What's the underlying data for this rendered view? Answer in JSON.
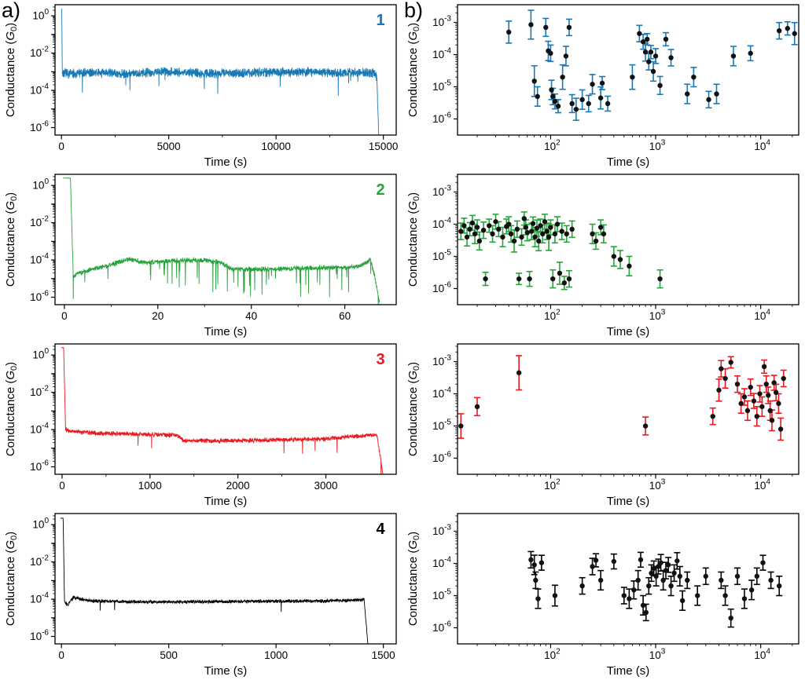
{
  "panels": {
    "a": {
      "label": "a)"
    },
    "b": {
      "label": "b)"
    }
  },
  "axis_labels": {
    "x": "Time (s)",
    "y": "Conductance (G_0)"
  },
  "colors": {
    "series1": "#1779b4",
    "series2": "#27a33c",
    "series3": "#e8191f",
    "series4": "#000000",
    "marker": "#111111"
  },
  "chart_data": [
    {
      "id": "a1",
      "type": "line",
      "series_label": "1",
      "color": "#1779b4",
      "xlabel": "Time (s)",
      "ylabel": "Conductance (G_0)",
      "x_scale": "linear",
      "xlim": [
        -300,
        15600
      ],
      "xticks": [
        0,
        5000,
        10000,
        15000
      ],
      "ylim_log": [
        -6.4,
        0.6
      ],
      "yticks_exp": [
        0,
        -2,
        -4,
        -6
      ],
      "trace": {
        "seed": 7,
        "n": 2200,
        "noise": 0.18,
        "spike_prob": 0.004,
        "spike_depth": 0.9,
        "anchors": [
          [
            0,
            0.35
          ],
          [
            15,
            0.35
          ],
          [
            40,
            -3.05
          ],
          [
            300,
            -3.1
          ],
          [
            1500,
            -3.05
          ],
          [
            3000,
            -3.1
          ],
          [
            5000,
            -3.0
          ],
          [
            7000,
            -3.1
          ],
          [
            9000,
            -3.05
          ],
          [
            11000,
            -3.0
          ],
          [
            13000,
            -3.05
          ],
          [
            14550,
            -3.05
          ],
          [
            14700,
            -3.3
          ],
          [
            14780,
            -6.4
          ]
        ]
      }
    },
    {
      "id": "a2",
      "type": "line",
      "series_label": "2",
      "color": "#27a33c",
      "xlabel": "Time (s)",
      "ylabel": "Conductance (G_0)",
      "x_scale": "linear",
      "xlim": [
        -2,
        71
      ],
      "xticks": [
        0,
        20,
        40,
        60
      ],
      "ylim_log": [
        -6.4,
        0.6
      ],
      "yticks_exp": [
        0,
        -2,
        -4,
        -6
      ],
      "trace": {
        "seed": 21,
        "n": 1600,
        "noise": 0.1,
        "spike_prob": 0.025,
        "spike_depth": 1.2,
        "anchors": [
          [
            -0.3,
            0.4
          ],
          [
            1.3,
            0.4
          ],
          [
            1.9,
            -4.9
          ],
          [
            3,
            -4.7
          ],
          [
            6,
            -4.5
          ],
          [
            10,
            -4.25
          ],
          [
            14,
            -3.95
          ],
          [
            17,
            -4.15
          ],
          [
            22,
            -4.05
          ],
          [
            28,
            -4.0
          ],
          [
            33,
            -4.1
          ],
          [
            36,
            -4.5
          ],
          [
            43,
            -4.5
          ],
          [
            50,
            -4.45
          ],
          [
            58,
            -4.4
          ],
          [
            63,
            -4.35
          ],
          [
            65.5,
            -4.0
          ],
          [
            66.5,
            -5.0
          ],
          [
            67.5,
            -6.4
          ]
        ]
      }
    },
    {
      "id": "a3",
      "type": "line",
      "series_label": "3",
      "color": "#e8191f",
      "xlabel": "Time (s)",
      "ylabel": "Conductance (G_0)",
      "x_scale": "linear",
      "xlim": [
        -80,
        3800
      ],
      "xticks": [
        0,
        1000,
        2000,
        3000
      ],
      "ylim_log": [
        -6.4,
        0.6
      ],
      "yticks_exp": [
        0,
        -2,
        -4,
        -6
      ],
      "trace": {
        "seed": 33,
        "n": 1800,
        "noise": 0.09,
        "spike_prob": 0.004,
        "spike_depth": 0.5,
        "anchors": [
          [
            -10,
            0.4
          ],
          [
            18,
            0.4
          ],
          [
            40,
            -4.0
          ],
          [
            120,
            -4.1
          ],
          [
            400,
            -4.2
          ],
          [
            900,
            -4.25
          ],
          [
            1300,
            -4.3
          ],
          [
            1390,
            -4.6
          ],
          [
            1900,
            -4.6
          ],
          [
            2500,
            -4.55
          ],
          [
            3000,
            -4.5
          ],
          [
            3350,
            -4.35
          ],
          [
            3580,
            -4.3
          ],
          [
            3650,
            -6.4
          ]
        ]
      }
    },
    {
      "id": "a4",
      "type": "line",
      "series_label": "4",
      "color": "#000000",
      "xlabel": "Time (s)",
      "ylabel": "Conductance (G_0)",
      "x_scale": "linear",
      "xlim": [
        -30,
        1560
      ],
      "xticks": [
        0,
        500,
        1000,
        1500
      ],
      "ylim_log": [
        -6.4,
        0.6
      ],
      "yticks_exp": [
        0,
        -2,
        -4,
        -6
      ],
      "trace": {
        "seed": 44,
        "n": 1600,
        "noise": 0.07,
        "spike_prob": 0.003,
        "spike_depth": 0.5,
        "anchors": [
          [
            -5,
            0.35
          ],
          [
            8,
            0.35
          ],
          [
            14,
            -4.15
          ],
          [
            30,
            -4.3
          ],
          [
            55,
            -3.9
          ],
          [
            90,
            -4.0
          ],
          [
            150,
            -4.1
          ],
          [
            400,
            -4.15
          ],
          [
            800,
            -4.12
          ],
          [
            1200,
            -4.1
          ],
          [
            1380,
            -4.05
          ],
          [
            1410,
            -4.0
          ],
          [
            1428,
            -6.4
          ]
        ]
      }
    },
    {
      "id": "b1",
      "type": "scatter",
      "color": "#1779b4",
      "marker_color": "#111111",
      "xlabel": "Time (s)",
      "ylabel": "Conductance (G_0)",
      "x_scale": "log",
      "xlim": [
        13,
        23000
      ],
      "xticks_exp": [
        2,
        3,
        4
      ],
      "ylim_log": [
        -6.5,
        -2.45
      ],
      "yticks_exp": [
        -3,
        -4,
        -5,
        -6
      ],
      "points": [
        [
          40,
          0.0005,
          2.2
        ],
        [
          65,
          0.00085,
          2.8
        ],
        [
          70,
          1.5e-05,
          3
        ],
        [
          75,
          5e-06,
          2
        ],
        [
          90,
          0.0007,
          1.9
        ],
        [
          95,
          0.00013,
          2
        ],
        [
          100,
          0.00011,
          1.8
        ],
        [
          102,
          8e-06,
          2
        ],
        [
          105,
          5e-06,
          1.8
        ],
        [
          110,
          3.5e-06,
          1.7
        ],
        [
          118,
          2.5e-06,
          1.6
        ],
        [
          130,
          2e-05,
          2.4
        ],
        [
          140,
          9e-05,
          2
        ],
        [
          150,
          0.0007,
          1.8
        ],
        [
          160,
          3e-06,
          1.9
        ],
        [
          175,
          2e-06,
          2.2
        ],
        [
          200,
          4e-06,
          2
        ],
        [
          230,
          3e-06,
          1.8
        ],
        [
          250,
          1.2e-05,
          2
        ],
        [
          300,
          4.5e-06,
          2.2
        ],
        [
          310,
          1.3e-05,
          1.6
        ],
        [
          350,
          3e-06,
          1.7
        ],
        [
          600,
          2e-05,
          2.4
        ],
        [
          700,
          0.00045,
          1.8
        ],
        [
          760,
          0.00025,
          1.7
        ],
        [
          800,
          0.00012,
          1.9
        ],
        [
          830,
          0.0003,
          1.5
        ],
        [
          860,
          6e-05,
          1.8
        ],
        [
          900,
          0.00012,
          1.6
        ],
        [
          950,
          3e-05,
          2
        ],
        [
          1000,
          9e-05,
          1.7
        ],
        [
          1100,
          1.1e-05,
          1.9
        ],
        [
          1250,
          0.0003,
          1.6
        ],
        [
          1400,
          8e-05,
          1.8
        ],
        [
          2000,
          6e-06,
          2
        ],
        [
          2300,
          2e-05,
          2
        ],
        [
          3200,
          4e-06,
          1.8
        ],
        [
          3800,
          6e-06,
          2
        ],
        [
          5500,
          9e-05,
          2
        ],
        [
          8000,
          0.00011,
          1.7
        ],
        [
          15000,
          0.00055,
          1.8
        ],
        [
          18000,
          0.00065,
          1.6
        ],
        [
          21000,
          0.00045,
          2.2
        ]
      ]
    },
    {
      "id": "b2",
      "type": "scatter",
      "color": "#27a33c",
      "marker_color": "#111111",
      "xlabel": "Time (s)",
      "ylabel": "Conductance (G_0)",
      "x_scale": "log",
      "xlim": [
        13,
        23000
      ],
      "xticks_exp": [
        2,
        3,
        4
      ],
      "ylim_log": [
        -6.5,
        -2.45
      ],
      "yticks_exp": [
        -3,
        -4,
        -5,
        -6
      ],
      "points": [
        [
          14,
          6e-05,
          1.8
        ],
        [
          15,
          9e-05,
          1.7
        ],
        [
          16,
          4e-05,
          1.9
        ],
        [
          17,
          7e-05,
          1.6
        ],
        [
          18,
          0.00011,
          1.7
        ],
        [
          19,
          5e-05,
          2
        ],
        [
          20,
          8e-05,
          1.7
        ],
        [
          21,
          3e-05,
          1.9
        ],
        [
          23,
          6.5e-05,
          1.8
        ],
        [
          24,
          2e-06,
          1.6
        ],
        [
          26,
          9e-05,
          1.6
        ],
        [
          28,
          5e-05,
          1.8
        ],
        [
          30,
          0.00012,
          1.7
        ],
        [
          32,
          7e-05,
          1.7
        ],
        [
          35,
          4e-05,
          2
        ],
        [
          38,
          8.5e-05,
          1.7
        ],
        [
          40,
          0.0001,
          1.7
        ],
        [
          42,
          5e-05,
          1.8
        ],
        [
          45,
          3e-05,
          2.2
        ],
        [
          48,
          7e-05,
          1.8
        ],
        [
          50,
          2e-06,
          1.5
        ],
        [
          53,
          4e-05,
          1.8
        ],
        [
          56,
          0.00015,
          1.6
        ],
        [
          58,
          8e-05,
          1.7
        ],
        [
          60,
          5.5e-05,
          1.8
        ],
        [
          63,
          2e-06,
          1.7
        ],
        [
          66,
          6e-05,
          1.8
        ],
        [
          68,
          0.000105,
          1.6
        ],
        [
          71,
          4e-05,
          2
        ],
        [
          74,
          7.5e-05,
          1.8
        ],
        [
          77,
          3e-05,
          2
        ],
        [
          80,
          9e-05,
          1.6
        ],
        [
          84,
          5e-05,
          1.9
        ],
        [
          88,
          0.00012,
          1.7
        ],
        [
          92,
          6e-05,
          1.8
        ],
        [
          96,
          4e-05,
          2.6
        ],
        [
          100,
          8e-05,
          1.7
        ],
        [
          105,
          2e-06,
          1.9
        ],
        [
          110,
          5e-05,
          1.9
        ],
        [
          116,
          0.0001,
          1.7
        ],
        [
          122,
          3e-06,
          2.2
        ],
        [
          128,
          6e-05,
          1.8
        ],
        [
          135,
          1.5e-06,
          1.6
        ],
        [
          142,
          5e-05,
          1.8
        ],
        [
          150,
          2e-06,
          1.8
        ],
        [
          160,
          7e-05,
          1.8
        ],
        [
          250,
          5e-05,
          2
        ],
        [
          270,
          3e-05,
          1.8
        ],
        [
          300,
          8e-05,
          1.7
        ],
        [
          320,
          5e-05,
          1.9
        ],
        [
          400,
          1e-05,
          2
        ],
        [
          460,
          8e-06,
          1.9
        ],
        [
          560,
          5e-06,
          2
        ],
        [
          1100,
          2e-06,
          1.9
        ]
      ]
    },
    {
      "id": "b3",
      "type": "scatter",
      "color": "#e8191f",
      "marker_color": "#111111",
      "xlabel": "Time (s)",
      "ylabel": "Conductance (G_0)",
      "x_scale": "log",
      "xlim": [
        13,
        23000
      ],
      "xticks_exp": [
        2,
        3,
        4
      ],
      "ylim_log": [
        -6.5,
        -2.45
      ],
      "yticks_exp": [
        -3,
        -4,
        -5,
        -6
      ],
      "points": [
        [
          14,
          1e-05,
          2.4
        ],
        [
          20,
          4e-05,
          1.9
        ],
        [
          50,
          0.00045,
          3.4
        ],
        [
          800,
          1e-05,
          1.9
        ],
        [
          3500,
          2e-05,
          1.8
        ],
        [
          4000,
          0.00013,
          2.2
        ],
        [
          4200,
          0.0006,
          1.8
        ],
        [
          4600,
          0.0003,
          2
        ],
        [
          5200,
          0.00095,
          1.5
        ],
        [
          6000,
          0.0002,
          1.8
        ],
        [
          6500,
          5e-05,
          2
        ],
        [
          7000,
          8e-05,
          1.8
        ],
        [
          7500,
          3e-05,
          2
        ],
        [
          8000,
          0.00016,
          1.8
        ],
        [
          8600,
          6e-05,
          1.7
        ],
        [
          9200,
          2e-05,
          2
        ],
        [
          9800,
          0.0001,
          1.8
        ],
        [
          10300,
          4e-05,
          2
        ],
        [
          10800,
          0.0007,
          1.6
        ],
        [
          11300,
          0.0002,
          1.8
        ],
        [
          11800,
          9e-05,
          1.8
        ],
        [
          12300,
          3e-05,
          2
        ],
        [
          12800,
          1.5e-05,
          2.1
        ],
        [
          13400,
          0.00022,
          1.7
        ],
        [
          14000,
          0.00011,
          1.8
        ],
        [
          14800,
          5e-05,
          2
        ],
        [
          15500,
          8e-06,
          2.2
        ],
        [
          16500,
          0.0003,
          1.8
        ]
      ]
    },
    {
      "id": "b4",
      "type": "scatter",
      "color": "#000000",
      "marker_color": "#111111",
      "xlabel": "Time (s)",
      "ylabel": "Conductance (G_0)",
      "x_scale": "log",
      "xlim": [
        13,
        23000
      ],
      "xticks_exp": [
        2,
        3,
        4
      ],
      "ylim_log": [
        -6.5,
        -2.45
      ],
      "yticks_exp": [
        -3,
        -4,
        -5,
        -6
      ],
      "points": [
        [
          65,
          0.00013,
          1.8
        ],
        [
          70,
          9e-05,
          2
        ],
        [
          72,
          3e-05,
          1.8
        ],
        [
          76,
          8e-06,
          2
        ],
        [
          82,
          0.000105,
          1.7
        ],
        [
          110,
          1e-05,
          2.1
        ],
        [
          200,
          2e-05,
          1.8
        ],
        [
          250,
          8e-05,
          1.8
        ],
        [
          270,
          0.000125,
          1.6
        ],
        [
          300,
          3e-05,
          2
        ],
        [
          400,
          0.000115,
          1.7
        ],
        [
          500,
          1e-05,
          1.8
        ],
        [
          560,
          8e-06,
          2
        ],
        [
          620,
          1.5e-05,
          1.9
        ],
        [
          680,
          3e-05,
          2
        ],
        [
          720,
          0.00013,
          1.7
        ],
        [
          760,
          5e-06,
          2
        ],
        [
          810,
          3e-06,
          1.8
        ],
        [
          860,
          2e-05,
          1.8
        ],
        [
          910,
          5e-05,
          1.8
        ],
        [
          960,
          7e-05,
          1.7
        ],
        [
          1010,
          4e-05,
          2
        ],
        [
          1060,
          8e-05,
          1.7
        ],
        [
          1120,
          0.000105,
          1.8
        ],
        [
          1180,
          3e-05,
          2
        ],
        [
          1250,
          6e-05,
          1.8
        ],
        [
          1320,
          9e-05,
          1.7
        ],
        [
          1400,
          2e-05,
          2
        ],
        [
          1500,
          5e-05,
          1.8
        ],
        [
          1600,
          0.00012,
          1.8
        ],
        [
          1700,
          4e-05,
          2
        ],
        [
          1800,
          7e-06,
          2
        ],
        [
          2000,
          3e-05,
          1.8
        ],
        [
          2500,
          1e-05,
          2
        ],
        [
          3000,
          4e-05,
          1.8
        ],
        [
          4200,
          3e-05,
          1.8
        ],
        [
          4600,
          1e-05,
          2
        ],
        [
          5200,
          2e-06,
          1.9
        ],
        [
          6000,
          4e-05,
          1.8
        ],
        [
          7000,
          8e-06,
          2
        ],
        [
          8200,
          1.5e-05,
          2
        ],
        [
          9200,
          4e-05,
          1.8
        ],
        [
          10500,
          0.000105,
          1.7
        ],
        [
          12500,
          3e-05,
          1.8
        ],
        [
          15000,
          2e-05,
          2
        ]
      ]
    }
  ]
}
